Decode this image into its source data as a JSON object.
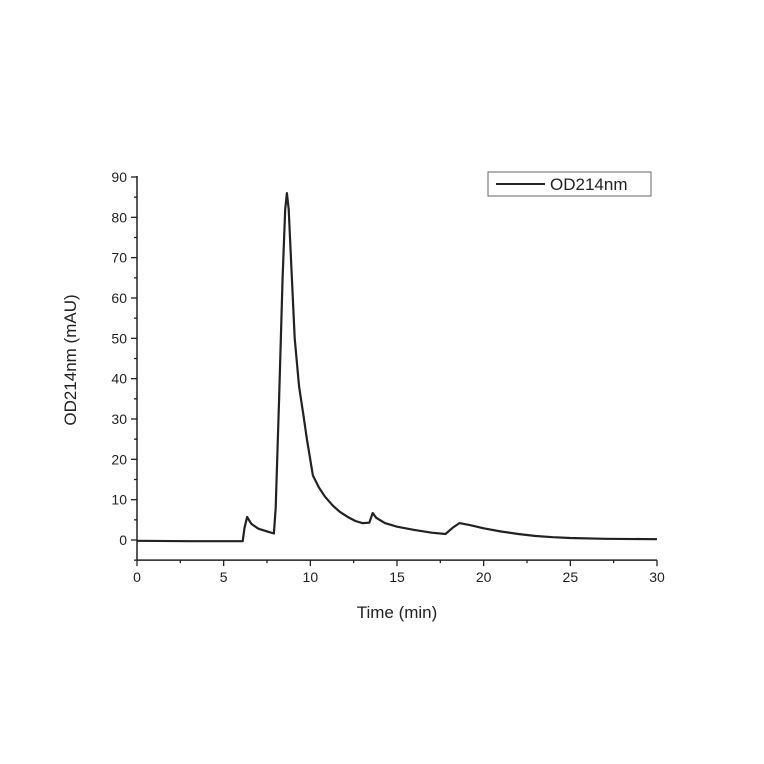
{
  "chart_data": {
    "type": "line",
    "title": "",
    "xlabel": "Time (min)",
    "ylabel": "OD214nm (mAU)",
    "xlim": [
      0,
      30
    ],
    "ylim": [
      -5,
      90
    ],
    "xticks": [
      0,
      5,
      10,
      15,
      20,
      25,
      30
    ],
    "yticks": [
      0,
      10,
      20,
      30,
      40,
      50,
      60,
      70,
      80,
      90
    ],
    "grid": false,
    "legend": {
      "position": "top-right",
      "entries": [
        "OD214nm"
      ]
    },
    "series": [
      {
        "name": "OD214nm",
        "color": "#222222",
        "x": [
          0,
          3,
          6.1,
          6.2,
          6.35,
          6.6,
          7.0,
          7.6,
          7.9,
          8.0,
          8.2,
          8.4,
          8.55,
          8.65,
          8.75,
          8.9,
          9.1,
          9.35,
          9.6,
          9.8,
          10.15,
          10.5,
          10.85,
          11.3,
          11.7,
          12.2,
          12.6,
          13.0,
          13.4,
          13.6,
          13.8,
          14.3,
          15.0,
          16.0,
          17.0,
          17.8,
          18.2,
          18.6,
          19.2,
          20.0,
          21.0,
          22.0,
          23.0,
          24.0,
          25.0,
          27.0,
          30.0
        ],
        "y": [
          -0.2,
          -0.3,
          -0.3,
          3.0,
          5.7,
          4.0,
          2.8,
          2.0,
          1.6,
          8.0,
          35,
          65,
          82,
          86,
          82,
          68,
          50,
          38,
          31,
          25,
          16,
          13,
          10.7,
          8.5,
          7.0,
          5.6,
          4.7,
          4.2,
          4.3,
          6.7,
          5.5,
          4.2,
          3.3,
          2.5,
          1.8,
          1.5,
          3.0,
          4.2,
          3.7,
          2.9,
          2.1,
          1.5,
          1.0,
          0.7,
          0.5,
          0.3,
          0.2
        ]
      }
    ]
  }
}
